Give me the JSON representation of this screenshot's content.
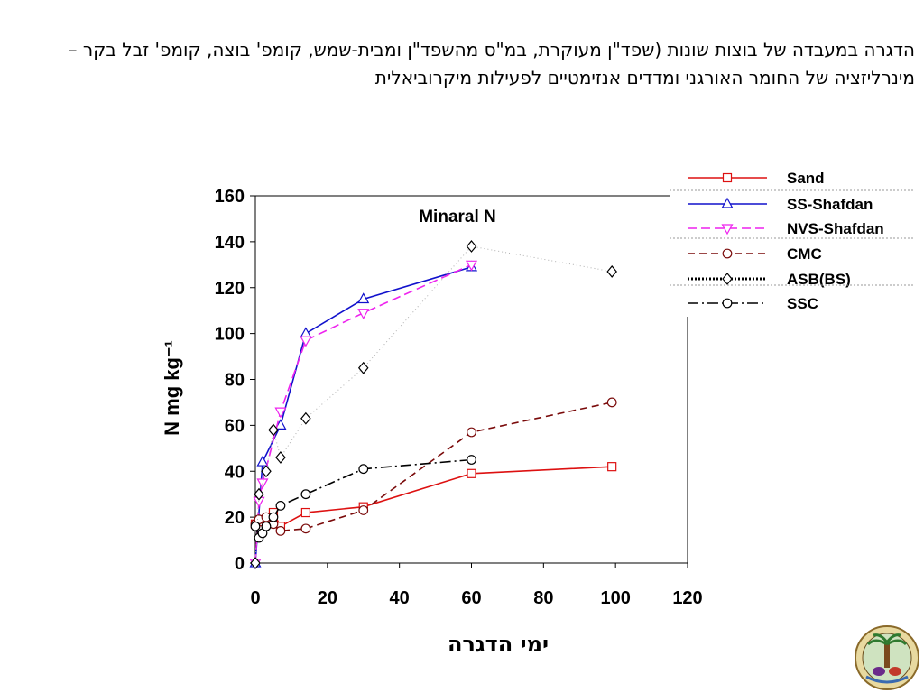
{
  "title": "הדגרה במעבדה של בוצות שונות (שפד\"ן מעוקרת, במ\"ס מהשפד\"ן ומבית-שמש, קומפ' בוצה, קומפ' זבל בקר – מינרליזציה של החומר האורגני ומדדים אנזימטיים לפעילות מיקרוביאלית",
  "colors": {
    "sand": "#dd1111",
    "ss_shafdan": "#1111cc",
    "nvs_shafdan": "#ee22ee",
    "cmc": "#7a0a0a",
    "asb_bs": "#000000",
    "ssc": "#000000"
  },
  "logo": {
    "icon": "institution-seal-icon"
  },
  "chart_data": {
    "type": "line",
    "title": "Minaral N",
    "xlabel": "ימי הדגרה",
    "ylabel": "N mg kg⁻¹",
    "xlim": [
      0,
      120
    ],
    "ylim": [
      0,
      160
    ],
    "xticks": [
      0,
      20,
      40,
      60,
      80,
      100,
      120
    ],
    "yticks": [
      0,
      20,
      40,
      60,
      80,
      100,
      120,
      140,
      160
    ],
    "legend_position": "top-right",
    "series": [
      {
        "name": "Sand",
        "color": "#dd1111",
        "dash": "",
        "marker": "square",
        "x": [
          0,
          1,
          3,
          5,
          7,
          14,
          30,
          60,
          99
        ],
        "y": [
          17,
          18,
          19,
          22,
          16,
          22,
          24.5,
          39,
          42
        ]
      },
      {
        "name": "SS-Shafdan",
        "color": "#1111cc",
        "dash": "",
        "marker": "triangle-up",
        "x": [
          0,
          2,
          7,
          14,
          30,
          60
        ],
        "y": [
          0,
          44,
          60,
          100,
          115,
          129
        ]
      },
      {
        "name": "NVS-Shafdan",
        "color": "#ee22ee",
        "dash": "10,5",
        "marker": "triangle-down",
        "x": [
          0,
          1,
          2,
          7,
          14,
          30,
          60
        ],
        "y": [
          0,
          27,
          35,
          66,
          97,
          109,
          130
        ]
      },
      {
        "name": "CMC",
        "color": "#7a0a0a",
        "dash": "8,5",
        "marker": "circle",
        "x": [
          0,
          1,
          3,
          5,
          7,
          14,
          30,
          60,
          99
        ],
        "y": [
          17,
          19,
          20,
          17,
          14,
          15,
          23,
          57,
          70
        ]
      },
      {
        "name": "ASB(BS)",
        "color": "#000000",
        "dash": "1,3",
        "marker": "diamond",
        "x": [
          0,
          1,
          3,
          5,
          7,
          14,
          30,
          60,
          99
        ],
        "y": [
          0,
          30,
          40,
          58,
          46,
          63,
          85,
          138,
          127
        ]
      },
      {
        "name": "SSC",
        "color": "#000000",
        "dash": "12,4,2,4",
        "marker": "circle",
        "x": [
          0,
          1,
          2,
          3,
          5,
          7,
          14,
          30,
          60
        ],
        "y": [
          16,
          11,
          13,
          16,
          20,
          25,
          30,
          41,
          45
        ]
      }
    ]
  }
}
